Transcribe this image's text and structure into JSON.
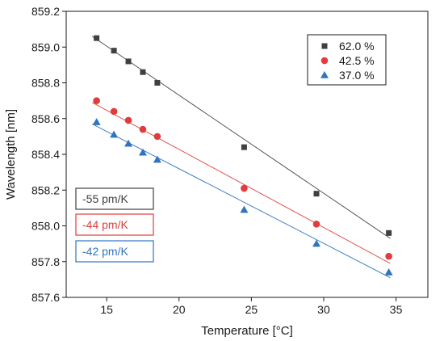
{
  "chart_data": {
    "type": "scatter",
    "xlabel": "Temperature [°C]",
    "ylabel": "Wavelength [nm]",
    "xlim": [
      12.2,
      37.2
    ],
    "ylim": [
      857.6,
      859.2
    ],
    "x_ticks": [
      15,
      20,
      25,
      30,
      35
    ],
    "y_ticks": [
      857.6,
      857.8,
      858.0,
      858.2,
      858.4,
      858.6,
      858.8,
      859.0,
      859.2
    ],
    "y_tick_labels": [
      "857.6",
      "857.8",
      "858.0",
      "858.2",
      "858.4",
      "858.6",
      "858.8",
      "859.0",
      "859.2"
    ],
    "legend_position": "top-right",
    "grid": false,
    "series": [
      {
        "name": "62.0 %",
        "marker": "square",
        "color": "#404040",
        "x": [
          14.3,
          15.5,
          16.5,
          17.5,
          18.5,
          24.5,
          29.5,
          34.5
        ],
        "y": [
          859.05,
          858.98,
          858.92,
          858.86,
          858.8,
          858.44,
          858.18,
          857.96
        ],
        "fit": {
          "x": [
            14.0,
            34.6
          ],
          "y": [
            859.06,
            857.93
          ]
        }
      },
      {
        "name": "42.5 %",
        "marker": "circle",
        "color": "#e03c3c",
        "x": [
          14.3,
          15.5,
          16.5,
          17.5,
          18.5,
          24.5,
          29.5,
          34.5
        ],
        "y": [
          858.7,
          858.64,
          858.59,
          858.54,
          858.5,
          858.21,
          858.01,
          857.83
        ],
        "fit": {
          "x": [
            14.0,
            34.6
          ],
          "y": [
            858.69,
            857.79
          ]
        }
      },
      {
        "name": "37.0 %",
        "marker": "triangle",
        "color": "#2f74c0",
        "x": [
          14.3,
          15.5,
          16.5,
          17.5,
          18.5,
          24.5,
          29.5,
          34.5
        ],
        "y": [
          858.58,
          858.51,
          858.46,
          858.41,
          858.37,
          858.09,
          857.9,
          857.74
        ],
        "fit": {
          "x": [
            14.0,
            34.6
          ],
          "y": [
            858.57,
            857.71
          ]
        }
      }
    ],
    "annotations": [
      {
        "text": "-55 pm/K",
        "color": "#404040"
      },
      {
        "text": "-44 pm/K",
        "color": "#e03c3c"
      },
      {
        "text": "-42 pm/K",
        "color": "#2f74c0"
      }
    ]
  }
}
